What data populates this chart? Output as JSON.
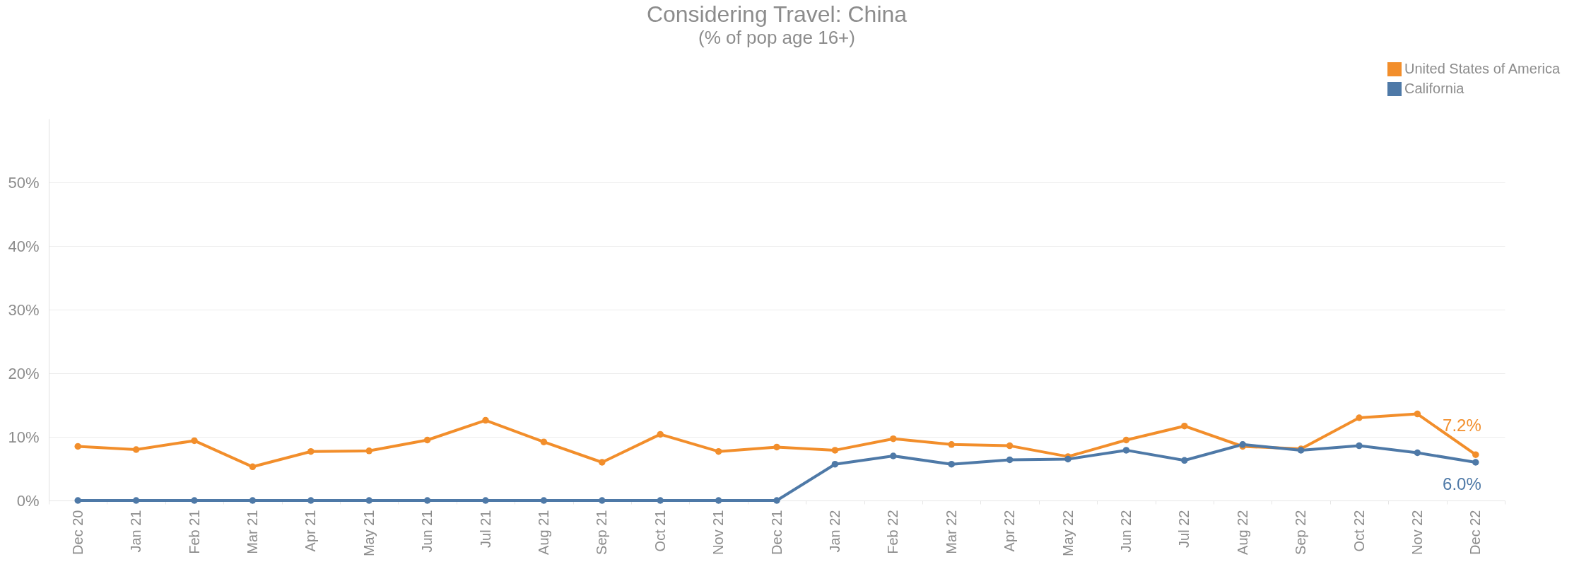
{
  "chart_data": {
    "type": "line",
    "title": "Considering Travel: China",
    "subtitle": "(% of pop age 16+)",
    "categories": [
      "Dec 20",
      "Jan 21",
      "Feb 21",
      "Mar 21",
      "Apr 21",
      "May 21",
      "Jun 21",
      "Jul 21",
      "Aug 21",
      "Sep 21",
      "Oct 21",
      "Nov 21",
      "Dec 21",
      "Jan 22",
      "Feb 22",
      "Mar 22",
      "Apr 22",
      "May 22",
      "Jun 22",
      "Jul 22",
      "Aug 22",
      "Sep 22",
      "Oct 22",
      "Nov 22",
      "Dec 22"
    ],
    "series": [
      {
        "name": "United States of America",
        "color": "#f28e2b",
        "values": [
          8.5,
          8.0,
          9.4,
          5.3,
          7.7,
          7.8,
          9.5,
          12.6,
          9.2,
          6.0,
          10.4,
          7.7,
          8.4,
          7.9,
          9.7,
          8.8,
          8.6,
          6.9,
          9.5,
          11.7,
          8.5,
          8.1,
          13.0,
          13.6,
          7.2
        ],
        "value_labels": [
          null,
          null,
          null,
          null,
          null,
          null,
          null,
          null,
          null,
          null,
          null,
          null,
          null,
          null,
          null,
          null,
          null,
          null,
          null,
          null,
          null,
          null,
          null,
          null,
          "7.2%"
        ]
      },
      {
        "name": "California",
        "color": "#4e79a7",
        "values": [
          0,
          0,
          0,
          0,
          0,
          0,
          0,
          0,
          0,
          0,
          0,
          0,
          0,
          5.7,
          7.0,
          5.7,
          6.4,
          6.5,
          7.9,
          6.3,
          8.8,
          7.9,
          8.6,
          7.5,
          6.0
        ],
        "value_labels": [
          null,
          null,
          null,
          null,
          null,
          null,
          null,
          null,
          null,
          null,
          null,
          null,
          null,
          null,
          null,
          null,
          null,
          null,
          null,
          null,
          null,
          null,
          null,
          null,
          "6.0%"
        ]
      }
    ],
    "ylim": [
      0,
      60
    ],
    "yticks": [
      {
        "value": 0,
        "label": "0%"
      },
      {
        "value": 10,
        "label": "10%"
      },
      {
        "value": 20,
        "label": "20%"
      },
      {
        "value": 30,
        "label": "30%"
      },
      {
        "value": 40,
        "label": "40%"
      },
      {
        "value": 50,
        "label": "50%"
      }
    ],
    "grid": "y",
    "legend": "top right",
    "marker": "circle",
    "line_style": "solid"
  }
}
